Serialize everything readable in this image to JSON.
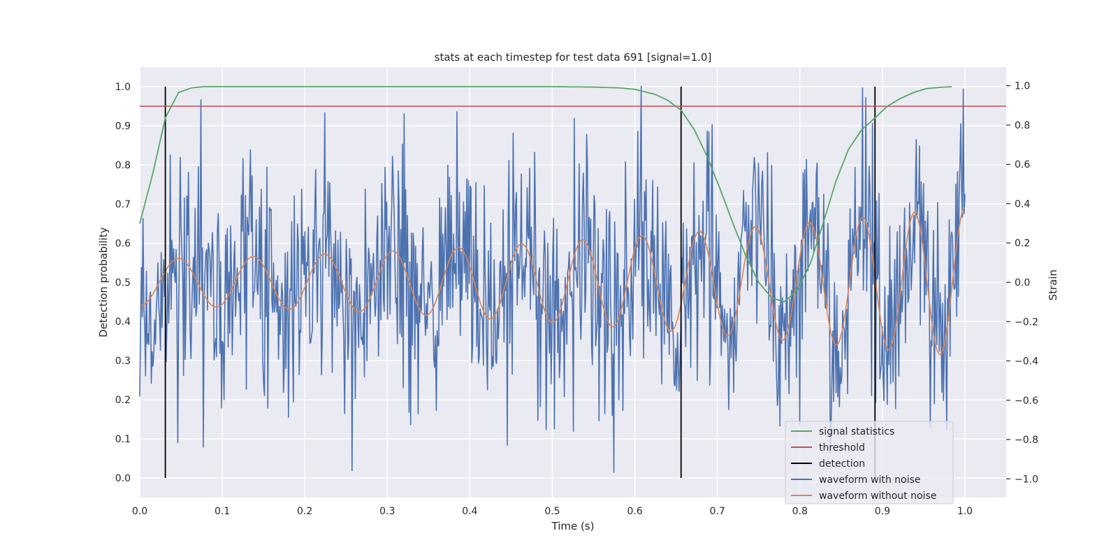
{
  "chart_data": {
    "type": "line",
    "title": "stats at each timestep for test data 691 [signal=1.0]",
    "xlabel": "Time (s)",
    "ylabel_left": "Detection probability",
    "ylabel_right": "Strain",
    "xlim": [
      0.0,
      1.05
    ],
    "ylim_left": [
      -0.05,
      1.05
    ],
    "ylim_right": [
      -1.095,
      1.095
    ],
    "x_ticks": [
      "0.0",
      "0.1",
      "0.2",
      "0.3",
      "0.4",
      "0.5",
      "0.6",
      "0.7",
      "0.8",
      "0.9",
      "1.0"
    ],
    "y_left_ticks": [
      "0.0",
      "0.1",
      "0.2",
      "0.3",
      "0.4",
      "0.5",
      "0.6",
      "0.7",
      "0.8",
      "0.9",
      "1.0"
    ],
    "y_right_ticks": [
      "−1.0",
      "−0.8",
      "−0.6",
      "−0.4",
      "−0.2",
      "0.0",
      "0.2",
      "0.4",
      "0.6",
      "0.8",
      "1.0"
    ],
    "grid": true,
    "legend_position": "lower-right",
    "threshold": 0.95,
    "detections": [
      0.031,
      0.656,
      0.891
    ],
    "signal_statistics": {
      "x": [
        0.0,
        0.016,
        0.031,
        0.047,
        0.063,
        0.078,
        0.094,
        0.2,
        0.3,
        0.4,
        0.5,
        0.55,
        0.58,
        0.6,
        0.61,
        0.625,
        0.64,
        0.656,
        0.672,
        0.688,
        0.703,
        0.719,
        0.734,
        0.75,
        0.766,
        0.781,
        0.797,
        0.813,
        0.828,
        0.844,
        0.859,
        0.875,
        0.891,
        0.906,
        0.922,
        0.938,
        0.953,
        0.969,
        0.984
      ],
      "y": [
        0.65,
        0.78,
        0.92,
        0.985,
        0.997,
        1.0,
        1.0,
        1.0,
        1.0,
        1.0,
        1.0,
        0.999,
        0.997,
        0.993,
        0.988,
        0.98,
        0.965,
        0.94,
        0.89,
        0.82,
        0.74,
        0.65,
        0.57,
        0.5,
        0.46,
        0.45,
        0.48,
        0.55,
        0.65,
        0.76,
        0.84,
        0.89,
        0.92,
        0.95,
        0.97,
        0.985,
        0.995,
        0.998,
        1.0
      ]
    },
    "waveform_without_noise": {
      "t_start": 0.0,
      "t_end": 1.0,
      "amp_start": 0.12,
      "amp_end": 0.38,
      "freq_start_hz": 10.5,
      "freq_end_hz": 16.5
    },
    "waveform_with_noise": {
      "t_start": 0.0,
      "t_end": 1.0,
      "samples": 1000,
      "noise_std": 0.28,
      "y_range": [
        -0.97,
        1.0
      ]
    },
    "series": [
      {
        "name": "signal statistics",
        "color": "#55a868",
        "axis": "left"
      },
      {
        "name": "threshold",
        "color": "#c44e52",
        "axis": "left"
      },
      {
        "name": "detection",
        "color": "#000000",
        "axis": "left"
      },
      {
        "name": "waveform with noise",
        "color": "#4c72b0",
        "axis": "right"
      },
      {
        "name": "waveform without noise",
        "color": "#dd8452",
        "axis": "right"
      }
    ]
  }
}
